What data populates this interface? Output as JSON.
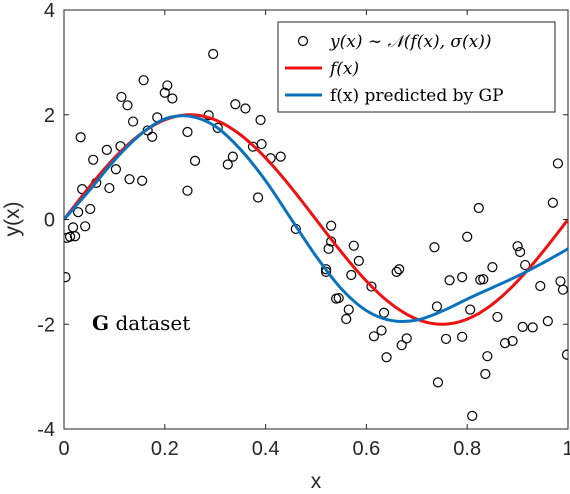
{
  "chart_data": {
    "type": "scatter",
    "xlabel": "x",
    "ylabel": "y(x)",
    "xlim": [
      0,
      1
    ],
    "ylim": [
      -4,
      4
    ],
    "xticks": [
      0,
      0.2,
      0.4,
      0.6,
      0.8,
      1
    ],
    "xtick_labels": [
      "0",
      "0.2",
      "0.4",
      "0.6",
      "0.8",
      "1"
    ],
    "yticks": [
      -4,
      -2,
      0,
      2,
      4
    ],
    "ytick_labels": [
      "-4",
      "-2",
      "0",
      "2",
      "4"
    ],
    "grid": false,
    "legend_placement": "top-right",
    "annotation": {
      "bold": "G",
      "text": " dataset"
    },
    "series": [
      {
        "name": "y(x) ∼ 𝒩(f(x), σ(x))",
        "kind": "scatter",
        "marker": "open-circle",
        "color": "#000000",
        "points": [
          [
            0.003,
            -1.1
          ],
          [
            0.006,
            -0.35
          ],
          [
            0.012,
            -0.33
          ],
          [
            0.018,
            -0.15
          ],
          [
            0.022,
            -0.32
          ],
          [
            0.028,
            0.14
          ],
          [
            0.033,
            1.57
          ],
          [
            0.036,
            0.58
          ],
          [
            0.042,
            -0.13
          ],
          [
            0.052,
            0.2
          ],
          [
            0.058,
            1.14
          ],
          [
            0.064,
            0.7
          ],
          [
            0.085,
            1.33
          ],
          [
            0.09,
            0.6
          ],
          [
            0.103,
            0.96
          ],
          [
            0.112,
            1.4
          ],
          [
            0.114,
            2.34
          ],
          [
            0.126,
            2.18
          ],
          [
            0.13,
            0.77
          ],
          [
            0.137,
            1.87
          ],
          [
            0.155,
            0.74
          ],
          [
            0.158,
            2.66
          ],
          [
            0.166,
            1.7
          ],
          [
            0.175,
            1.58
          ],
          [
            0.185,
            1.95
          ],
          [
            0.2,
            2.42
          ],
          [
            0.205,
            2.56
          ],
          [
            0.215,
            2.31
          ],
          [
            0.245,
            1.67
          ],
          [
            0.245,
            0.55
          ],
          [
            0.26,
            1.12
          ],
          [
            0.287,
            1.99
          ],
          [
            0.296,
            3.16
          ],
          [
            0.305,
            1.75
          ],
          [
            0.325,
            1.05
          ],
          [
            0.335,
            1.2
          ],
          [
            0.34,
            2.2
          ],
          [
            0.36,
            2.12
          ],
          [
            0.375,
            1.39
          ],
          [
            0.385,
            0.42
          ],
          [
            0.39,
            1.9
          ],
          [
            0.392,
            1.44
          ],
          [
            0.41,
            1.17
          ],
          [
            0.46,
            -0.18
          ],
          [
            0.52,
            -0.95
          ],
          [
            0.525,
            -0.56
          ],
          [
            0.53,
            -0.42
          ],
          [
            0.53,
            -0.12
          ],
          [
            0.545,
            -1.5
          ],
          [
            0.56,
            -1.9
          ],
          [
            0.565,
            -1.72
          ],
          [
            0.57,
            -1.06
          ],
          [
            0.575,
            -0.5
          ],
          [
            0.585,
            -0.79
          ],
          [
            0.61,
            -1.28
          ],
          [
            0.615,
            -2.23
          ],
          [
            0.63,
            -2.12
          ],
          [
            0.635,
            -1.78
          ],
          [
            0.64,
            -2.63
          ],
          [
            0.66,
            -1.0
          ],
          [
            0.665,
            -0.95
          ],
          [
            0.67,
            -2.4
          ],
          [
            0.68,
            -2.27
          ],
          [
            0.735,
            -0.53
          ],
          [
            0.74,
            -1.66
          ],
          [
            0.742,
            -3.11
          ],
          [
            0.758,
            -2.28
          ],
          [
            0.765,
            -1.16
          ],
          [
            0.79,
            -1.1
          ],
          [
            0.79,
            -2.24
          ],
          [
            0.8,
            -0.33
          ],
          [
            0.806,
            -1.72
          ],
          [
            0.81,
            -3.75
          ],
          [
            0.823,
            0.22
          ],
          [
            0.826,
            -1.15
          ],
          [
            0.832,
            -1.14
          ],
          [
            0.836,
            -2.95
          ],
          [
            0.84,
            -2.61
          ],
          [
            0.85,
            -0.91
          ],
          [
            0.86,
            -1.86
          ],
          [
            0.875,
            -2.36
          ],
          [
            0.89,
            -2.32
          ],
          [
            0.9,
            -0.51
          ],
          [
            0.905,
            -0.62
          ],
          [
            0.91,
            -2.05
          ],
          [
            0.915,
            -0.87
          ],
          [
            0.93,
            -2.06
          ],
          [
            0.945,
            -1.27
          ],
          [
            0.96,
            -1.94
          ],
          [
            0.97,
            0.32
          ],
          [
            0.98,
            1.07
          ],
          [
            0.985,
            -1.18
          ],
          [
            0.99,
            -1.34
          ],
          [
            0.998,
            -2.58
          ],
          [
            0.54,
            -1.51
          ],
          [
            0.43,
            1.2
          ],
          [
            0.52,
            -1.0
          ]
        ]
      },
      {
        "name": "f(x)",
        "kind": "line",
        "color": "#ee1111",
        "function": "2*sin(2*pi*x)"
      },
      {
        "name": "f(x) predicted by GP",
        "kind": "line",
        "color": "#0a72bd",
        "x": [
          0,
          0.05,
          0.1,
          0.15,
          0.2,
          0.25,
          0.3,
          0.35,
          0.4,
          0.45,
          0.5,
          0.55,
          0.6,
          0.65,
          0.7,
          0.75,
          0.8,
          0.85,
          0.9,
          0.95,
          1.0
        ],
        "y": [
          0.0,
          0.55,
          1.13,
          1.61,
          1.92,
          1.97,
          1.78,
          1.34,
          0.74,
          0.02,
          -0.7,
          -1.32,
          -1.74,
          -1.93,
          -1.92,
          -1.75,
          -1.52,
          -1.3,
          -1.08,
          -0.83,
          -0.56
        ]
      }
    ]
  }
}
